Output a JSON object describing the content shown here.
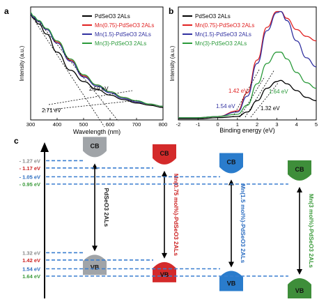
{
  "panels": {
    "a": {
      "letter": "a"
    },
    "b": {
      "letter": "b"
    },
    "c": {
      "letter": "c"
    }
  },
  "colors": {
    "pdseo3": "#000000",
    "mn075": "#e02020",
    "mn15": "#3030a0",
    "mn3": "#2a9a3a",
    "cb_gray": "#a0a4a8",
    "cb_red": "#d42a2a",
    "cb_blue": "#2a7ccc",
    "cb_green": "#3e8e3a",
    "dash": "#3a7fd0",
    "lbl_gray": "#8a8a8a",
    "lbl_red": "#cc2020",
    "lbl_blue": "#2a6cc0",
    "lbl_green": "#3a9a3a"
  },
  "chart_data": [
    {
      "type": "line",
      "xlabel": "Wavelength (nm)",
      "ylabel": "Intensity (a.u.)",
      "xlim": [
        300,
        800
      ],
      "xticks": [
        "300",
        "400",
        "500",
        "600",
        "700",
        "800"
      ],
      "annotations": [
        "2.59 eV",
        "2.71 eV"
      ],
      "series": [
        {
          "name": "PdSeO3 2ALs",
          "x": [
            300,
            310,
            330,
            360,
            400,
            450,
            500,
            550,
            600,
            650,
            700,
            750,
            800
          ],
          "y": [
            0.93,
            0.9,
            0.85,
            0.76,
            0.6,
            0.44,
            0.34,
            0.27,
            0.22,
            0.18,
            0.15,
            0.13,
            0.11
          ]
        },
        {
          "name": "Mn(0.75)-PdSeO3 2ALs",
          "x": [
            300,
            310,
            330,
            360,
            400,
            450,
            500,
            550,
            600,
            650,
            700,
            750,
            800
          ],
          "y": [
            0.94,
            0.91,
            0.87,
            0.8,
            0.69,
            0.53,
            0.39,
            0.31,
            0.25,
            0.2,
            0.16,
            0.14,
            0.12
          ]
        },
        {
          "name": "Mn(1.5)-PdSeO3 2ALs",
          "x": [
            300,
            310,
            330,
            360,
            400,
            450,
            500,
            550,
            600,
            650,
            700,
            750,
            800
          ],
          "y": [
            0.94,
            0.91,
            0.87,
            0.8,
            0.68,
            0.52,
            0.38,
            0.3,
            0.24,
            0.19,
            0.16,
            0.14,
            0.12
          ]
        },
        {
          "name": "Mn(3)-PdSeO3 2ALs",
          "x": [
            300,
            310,
            330,
            360,
            400,
            450,
            500,
            550,
            600,
            650,
            700,
            750,
            800
          ],
          "y": [
            0.95,
            0.92,
            0.88,
            0.81,
            0.7,
            0.54,
            0.4,
            0.31,
            0.25,
            0.2,
            0.17,
            0.14,
            0.12
          ]
        }
      ]
    },
    {
      "type": "line",
      "xlabel": "Binding energy (eV)",
      "ylabel": "Intensity (a.u.)",
      "xlim": [
        -2,
        5
      ],
      "xticks": [
        "-2",
        "-1",
        "0",
        "1",
        "2",
        "3",
        "4",
        "5"
      ],
      "annotations": [
        "1.42 eV",
        "1.64 eV",
        "1.54 eV",
        "1.32 eV"
      ],
      "series": [
        {
          "name": "PdSeO3 2ALs",
          "x": [
            -2,
            -1,
            0,
            1,
            1.5,
            2.0,
            2.5,
            3.0,
            3.2,
            3.5,
            4.0,
            4.5,
            5.0
          ],
          "y": [
            0.01,
            0.01,
            0.02,
            0.03,
            0.07,
            0.17,
            0.28,
            0.34,
            0.35,
            0.32,
            0.26,
            0.2,
            0.17
          ]
        },
        {
          "name": "Mn(0.75)-PdSeO3 2ALs",
          "x": [
            -2,
            -1,
            0,
            1,
            1.5,
            2.0,
            2.5,
            3.0,
            3.2,
            3.5,
            4.0,
            4.5,
            5.0
          ],
          "y": [
            0.02,
            0.02,
            0.03,
            0.08,
            0.24,
            0.53,
            0.82,
            0.96,
            0.96,
            0.9,
            0.8,
            0.74,
            0.7
          ]
        },
        {
          "name": "Mn(1.5)-PdSeO3 2ALs",
          "x": [
            -2,
            -1,
            0,
            1,
            1.5,
            2.0,
            2.5,
            3.0,
            3.2,
            3.5,
            4.0,
            4.5,
            5.0
          ],
          "y": [
            0.02,
            0.02,
            0.03,
            0.07,
            0.21,
            0.5,
            0.79,
            0.95,
            0.96,
            0.88,
            0.7,
            0.55,
            0.47
          ]
        },
        {
          "name": "Mn(3)-PdSeO3 2ALs",
          "x": [
            -2,
            -1,
            0,
            1,
            1.5,
            2.0,
            2.5,
            3.0,
            3.2,
            3.5,
            4.0,
            4.5,
            5.0
          ],
          "y": [
            0.02,
            0.02,
            0.03,
            0.05,
            0.13,
            0.32,
            0.5,
            0.6,
            0.6,
            0.54,
            0.42,
            0.33,
            0.28
          ]
        }
      ]
    },
    {
      "type": "diagram",
      "band_labels": {
        "cb": "CB",
        "vb": "VB"
      },
      "cb_levels": [
        {
          "text": "- 1.27 eV",
          "value": -1.27,
          "color": "#8a8a8a"
        },
        {
          "text": "- 1.17 eV",
          "value": -1.17,
          "color": "#cc2020"
        },
        {
          "text": "- 1.05 eV",
          "value": -1.05,
          "color": "#2a6cc0"
        },
        {
          "text": "- 0.95 eV",
          "value": -0.95,
          "color": "#3a9a3a"
        }
      ],
      "vb_levels": [
        {
          "text": "1.32 eV",
          "value": 1.32,
          "color": "#8a8a8a"
        },
        {
          "text": "1.42 eV",
          "value": 1.42,
          "color": "#cc2020"
        },
        {
          "text": "1.54 eV",
          "value": 1.54,
          "color": "#2a6cc0"
        },
        {
          "text": "1.64 eV",
          "value": 1.64,
          "color": "#3a9a3a"
        }
      ],
      "materials": [
        {
          "label": "PdSeO3 2ALs",
          "cb": -1.27,
          "vb": 1.32,
          "color": "#a0a4a8",
          "textColor": "#222222"
        },
        {
          "label": "Mn(0.75 mol%)-PdSeO3 2ALs",
          "cb": -1.17,
          "vb": 1.42,
          "color": "#d42a2a",
          "textColor": "#cc2020"
        },
        {
          "label": "Mn(1.5 mol%)-PdSeO3 2ALs",
          "cb": -1.05,
          "vb": 1.54,
          "color": "#2a7ccc",
          "textColor": "#2a6cc0"
        },
        {
          "label": "Mn(3 mol%)-PdSeO3 2ALs",
          "cb": -0.95,
          "vb": 1.64,
          "color": "#3e8e3a",
          "textColor": "#3a9a3a"
        }
      ]
    }
  ]
}
